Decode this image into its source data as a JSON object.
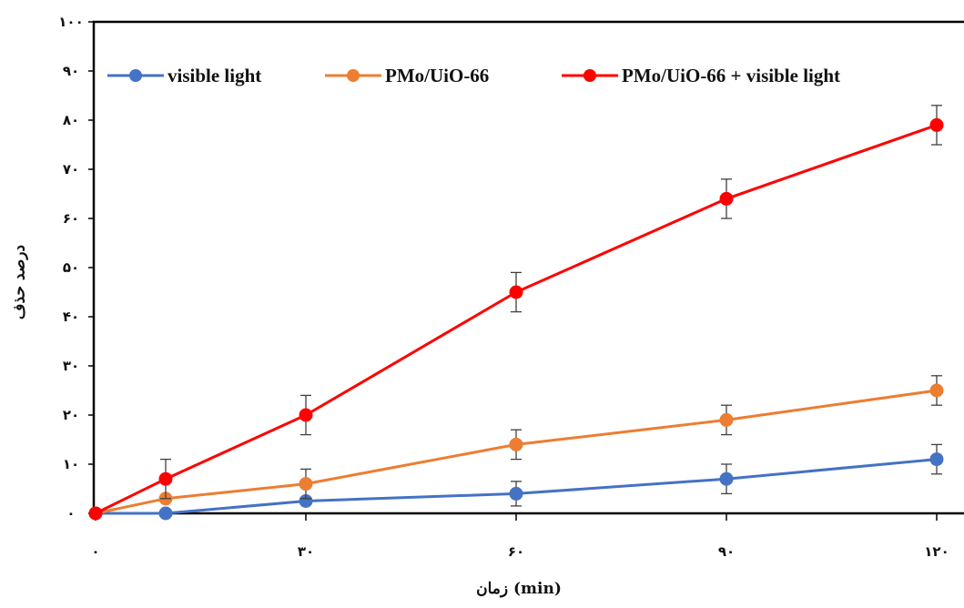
{
  "chart_data": {
    "type": "line",
    "x": [
      0,
      10,
      30,
      60,
      90,
      120
    ],
    "x_tick_values": [
      0,
      30,
      60,
      90,
      120
    ],
    "x_tick_labels": [
      "۰",
      "۳۰",
      "۶۰",
      "۹۰",
      "۱۲۰"
    ],
    "y_tick_values": [
      0,
      10,
      20,
      30,
      40,
      50,
      60,
      70,
      80,
      90,
      100
    ],
    "y_tick_labels": [
      "۰",
      "۱۰",
      "۲۰",
      "۳۰",
      "۴۰",
      "۵۰",
      "۶۰",
      "۷۰",
      "۸۰",
      "۹۰",
      "۱۰۰"
    ],
    "xlabel": "زمان (min)",
    "ylabel": "درصد حذف",
    "xlim": [
      0,
      120
    ],
    "ylim": [
      0,
      100
    ],
    "grid": false,
    "legend_position": "top",
    "series": [
      {
        "name": "visible light",
        "color": "#4472c4",
        "values": [
          0,
          0,
          2.5,
          4,
          7,
          11
        ],
        "errors": [
          0,
          0,
          0,
          2.5,
          3,
          3
        ]
      },
      {
        "name": "PMo/UiO-66",
        "color": "#ed7d31",
        "values": [
          0,
          3,
          6,
          14,
          19,
          25
        ],
        "errors": [
          0,
          0,
          3,
          3,
          3,
          3
        ]
      },
      {
        "name": "PMo/UiO-66 + visible light",
        "color": "#ff0000",
        "values": [
          0,
          7,
          20,
          45,
          64,
          79
        ],
        "errors": [
          0,
          4,
          4,
          4,
          4,
          4
        ]
      }
    ]
  }
}
